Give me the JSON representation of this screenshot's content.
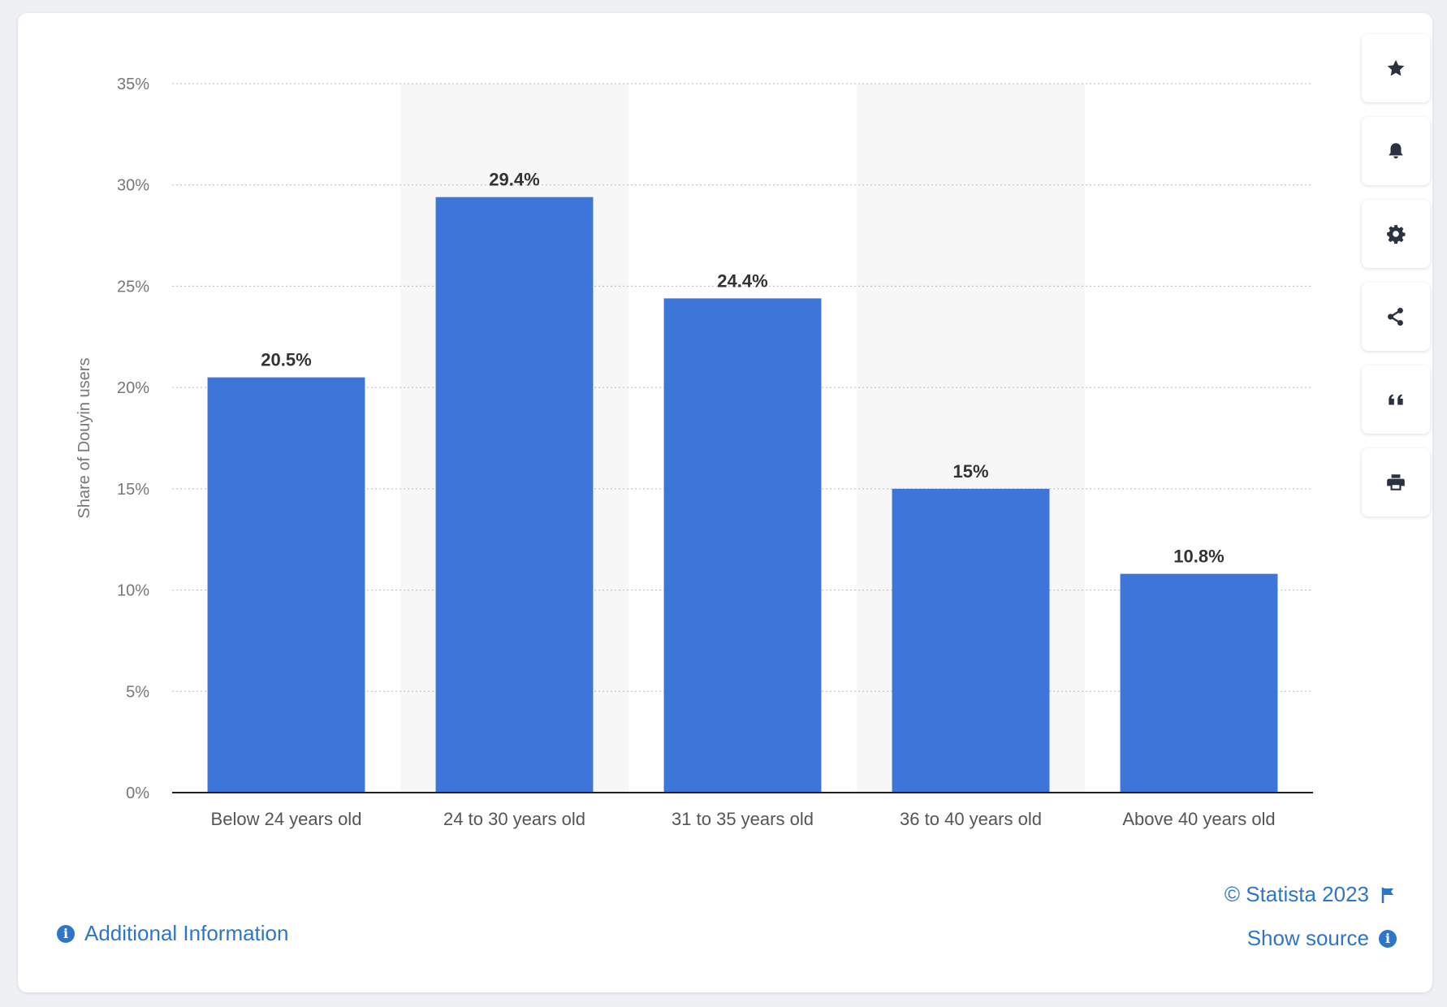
{
  "chart_data": {
    "type": "bar",
    "categories": [
      "Below 24 years old",
      "24 to 30 years old",
      "31 to 35 years old",
      "36 to 40 years old",
      "Above 40 years old"
    ],
    "values": [
      20.5,
      29.4,
      24.4,
      15,
      10.8
    ],
    "value_labels": [
      "20.5%",
      "29.4%",
      "24.4%",
      "15%",
      "10.8%"
    ],
    "ylabel": "Share of Douyin users",
    "ylim": [
      0,
      35
    ],
    "yticks": [
      0,
      5,
      10,
      15,
      20,
      25,
      30,
      35
    ],
    "ytick_labels": [
      "0%",
      "5%",
      "10%",
      "15%",
      "20%",
      "25%",
      "30%",
      "35%"
    ],
    "grid": true,
    "bar_color": "#3d76d8"
  },
  "footer": {
    "additional_info": "Additional Information",
    "copyright": "© Statista 2023",
    "show_source": "Show source"
  },
  "toolbar": [
    "star-icon",
    "bell-icon",
    "gear-icon",
    "share-icon",
    "quote-icon",
    "print-icon"
  ]
}
